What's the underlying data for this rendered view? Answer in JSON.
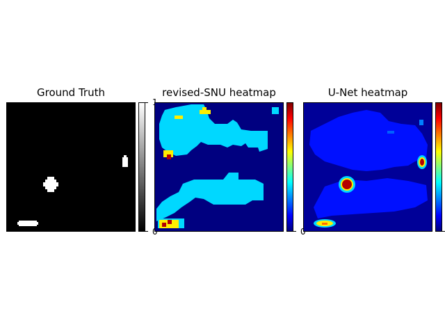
{
  "chart_data": [
    {
      "type": "heatmap",
      "title": "Ground Truth",
      "colormap": "gray",
      "colorbar": {
        "min_label": "0",
        "max_label": "1"
      },
      "grid": false,
      "regions_description_value": 1
    },
    {
      "type": "heatmap",
      "title": "revised-SNU heatmap",
      "colormap": "jet",
      "colorbar": {
        "min_label": "0"
      },
      "grid": false
    },
    {
      "type": "heatmap",
      "title": "U-Net heatmap",
      "colormap": "jet",
      "colorbar": {
        "min_label": ""
      },
      "grid": false
    }
  ],
  "colors": {
    "gt_bg": "#000000",
    "gt_fg": "#ffffff",
    "jet_low": "#000080",
    "jet_blue": "#0000ff",
    "jet_cyan": "#00d8ff",
    "jet_yellow": "#ffee00",
    "jet_red": "#b40000"
  }
}
